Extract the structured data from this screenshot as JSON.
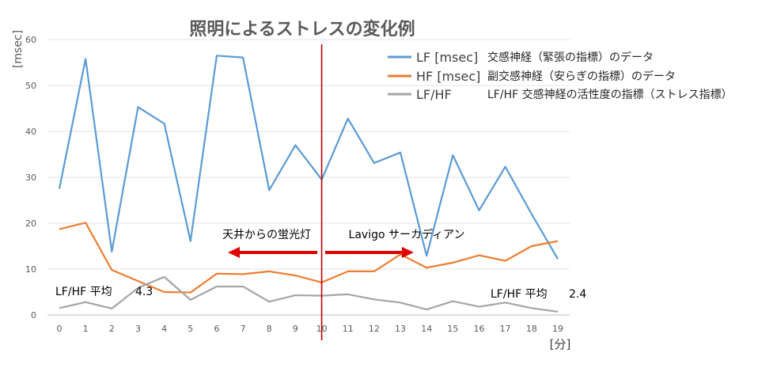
{
  "chart_data": {
    "type": "line",
    "title": "照明によるストレスの変化例",
    "ylabel": "[msec]",
    "xlabel": "[分]",
    "x": [
      0,
      1,
      2,
      3,
      4,
      5,
      6,
      7,
      8,
      9,
      10,
      11,
      12,
      13,
      14,
      15,
      16,
      17,
      18,
      19
    ],
    "ylim": [
      0,
      60
    ],
    "yticks": [
      0,
      10,
      20,
      30,
      40,
      50,
      60
    ],
    "grid": true,
    "legend_position": "top-right",
    "series": [
      {
        "name": "LF [msec]",
        "description": "交感神経（緊張の指標）のデータ",
        "color": "#5b9bd5",
        "values": [
          27.5,
          55.8,
          13.8,
          45.3,
          41.7,
          16.1,
          56.5,
          56.1,
          27.2,
          37.0,
          29.5,
          42.8,
          33.1,
          35.4,
          12.9,
          34.8,
          22.8,
          32.3,
          22.0,
          12.2
        ]
      },
      {
        "name": "HF [msec]",
        "description": "副交感神経（安らぎの指標）のデータ",
        "color": "#ed7d31",
        "values": [
          18.7,
          20.1,
          9.8,
          7.4,
          5.0,
          4.9,
          9.0,
          8.9,
          9.5,
          8.6,
          7.1,
          9.5,
          9.5,
          13.2,
          10.3,
          11.4,
          13.0,
          11.8,
          15.0,
          16.1
        ]
      },
      {
        "name": "LF/HF",
        "description": "LF/HF 交感神経の活性度の指標（ストレス指標）",
        "color": "#a5a5a5",
        "values": [
          1.5,
          2.8,
          1.4,
          5.9,
          8.3,
          3.3,
          6.2,
          6.2,
          2.9,
          4.3,
          4.2,
          4.5,
          3.4,
          2.7,
          1.2,
          3.0,
          1.8,
          2.7,
          1.5,
          0.7
        ]
      }
    ],
    "divider": {
      "x": 10,
      "color": "#c00000"
    },
    "annotations": {
      "left_label": "天井からの蛍光灯",
      "right_label": "Lavigo サーカディアン",
      "left_avg_label": "LF/HF 平均",
      "left_avg_value": "4.3",
      "right_avg_label": "LF/HF 平均",
      "right_avg_value": "2.4",
      "arrow_color": "#e00000"
    }
  }
}
